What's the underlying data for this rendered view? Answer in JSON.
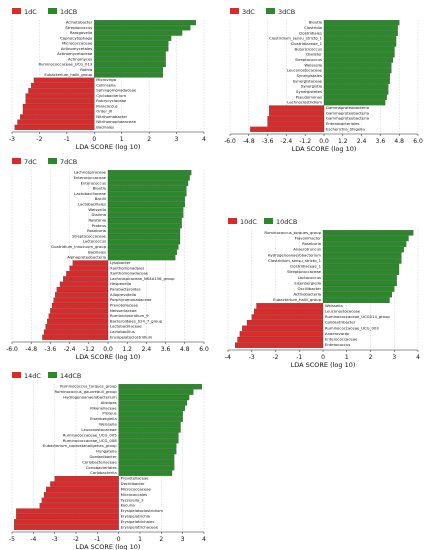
{
  "colors": {
    "control": "#dc2a2a",
    "treated": "#2a8a2a",
    "edge": "#333333",
    "grid": "#bbbbbb"
  },
  "chart_data": [
    {
      "type": "bar",
      "orientation": "horizontal",
      "xlabel": "LDA SCORE (log 10)",
      "xlim": [
        -3,
        4
      ],
      "xticks": [
        -3,
        -2,
        -1,
        0,
        1,
        2,
        3,
        4
      ],
      "series": [
        {
          "name": "1dC",
          "group": "control"
        },
        {
          "name": "1dCB",
          "group": "treated"
        }
      ],
      "bars": [
        {
          "label": "Acinetobacter",
          "value": 3.7
        },
        {
          "label": "Streptococcus",
          "value": 3.5
        },
        {
          "label": "Rarogavelia",
          "value": 3.2
        },
        {
          "label": "Capnocytophaga",
          "value": 2.8
        },
        {
          "label": "Micrococcaceae",
          "value": 2.7
        },
        {
          "label": "Actinomycetales",
          "value": 2.7
        },
        {
          "label": "Actinomycetaceae",
          "value": 2.6
        },
        {
          "label": "Actinomyces",
          "value": 2.6
        },
        {
          "label": "Ruminococcaceae_UCG_013",
          "value": 2.6
        },
        {
          "label": "Rothia",
          "value": 2.5
        },
        {
          "label": "Eubacterium_hallii_group",
          "value": 2.5
        },
        {
          "label": "Microvirga",
          "value": -2.2
        },
        {
          "label": "Collinsella",
          "value": -2.3
        },
        {
          "label": "Sphingomonadaceae",
          "value": -2.4
        },
        {
          "label": "Cyclobacterium",
          "value": -2.5
        },
        {
          "label": "Rubrycyclaceae",
          "value": -2.5
        },
        {
          "label": "Paracoccus",
          "value": -2.6
        },
        {
          "label": "Order_III",
          "value": -2.6
        },
        {
          "label": "Nitrihomabacter",
          "value": -2.7
        },
        {
          "label": "Nitrihomophaeaceae",
          "value": -2.8
        },
        {
          "label": "Bacillales",
          "value": -2.9
        }
      ]
    },
    {
      "type": "bar",
      "orientation": "horizontal",
      "xlabel": "LDA SCORE (log 10)",
      "xlim": [
        -6,
        6
      ],
      "xticks": [
        -6.0,
        -4.8,
        -3.6,
        -2.4,
        -1.2,
        0.0,
        1.2,
        2.4,
        3.6,
        4.8,
        6.0
      ],
      "series": [
        {
          "name": "3dC",
          "group": "control"
        },
        {
          "name": "3dCB",
          "group": "treated"
        }
      ],
      "bars": [
        {
          "label": "Blautia",
          "value": 4.8
        },
        {
          "label": "Clostridia",
          "value": 4.7
        },
        {
          "label": "Clostridiales",
          "value": 4.7
        },
        {
          "label": "Clostridium_sensu_stricto_1",
          "value": 4.6
        },
        {
          "label": "Clostridiaceae_1",
          "value": 4.6
        },
        {
          "label": "Butyricicoccus",
          "value": 4.5
        },
        {
          "label": "Dialister",
          "value": 4.5
        },
        {
          "label": "Streptococcus",
          "value": 4.4
        },
        {
          "label": "Weissella",
          "value": 4.3
        },
        {
          "label": "Leuconostocaceae",
          "value": 4.3
        },
        {
          "label": "Synergistales",
          "value": 4.2
        },
        {
          "label": "Synergistaceae",
          "value": 4.2
        },
        {
          "label": "Synergistia",
          "value": 4.1
        },
        {
          "label": "Synergistetes",
          "value": 4.1
        },
        {
          "label": "Pseudomonas",
          "value": 4.0
        },
        {
          "label": "Lachnoclostridium",
          "value": 3.9
        },
        {
          "label": "Gammaproteobacteria",
          "value": -3.5
        },
        {
          "label": "Gammaproteobacteria",
          "value": -3.5
        },
        {
          "label": "Gammaproteobacteria",
          "value": -3.6
        },
        {
          "label": "Enterobacteriales",
          "value": -3.6
        },
        {
          "label": "Escherichia_Shigella",
          "value": -4.7
        }
      ]
    },
    {
      "type": "bar",
      "orientation": "horizontal",
      "xlabel": "LDA SCORE (log 10)",
      "xlim": [
        -6,
        6
      ],
      "xticks": [
        -6.0,
        -4.8,
        -3.6,
        -2.4,
        -1.2,
        0.0,
        1.2,
        2.4,
        3.6,
        4.8,
        6.0
      ],
      "series": [
        {
          "name": "7dC",
          "group": "control"
        },
        {
          "name": "7dCB",
          "group": "treated"
        }
      ],
      "bars": [
        {
          "label": "Lachnospiraceae",
          "value": 5.2
        },
        {
          "label": "Enterococcaceae",
          "value": 5.1
        },
        {
          "label": "Enterococcus",
          "value": 5.0
        },
        {
          "label": "Blautia",
          "value": 4.9
        },
        {
          "label": "Lactobacillaceae",
          "value": 4.9
        },
        {
          "label": "Bacilli",
          "value": 4.8
        },
        {
          "label": "Lactobacillales",
          "value": 4.8
        },
        {
          "label": "Weissella",
          "value": 4.7
        },
        {
          "label": "Dialima",
          "value": 4.7
        },
        {
          "label": "Ralstonia",
          "value": 4.6
        },
        {
          "label": "Proteus",
          "value": 4.6
        },
        {
          "label": "Roseburia",
          "value": 4.5
        },
        {
          "label": "Streptococcaceae",
          "value": 4.5
        },
        {
          "label": "Lactococcus",
          "value": 4.5
        },
        {
          "label": "Clostridium_innocuum_group",
          "value": 4.4
        },
        {
          "label": "Bacillales",
          "value": 4.3
        },
        {
          "label": "Alphaproteobacteria",
          "value": 4.2
        },
        {
          "label": "Lysobacter",
          "value": -2.2
        },
        {
          "label": "Xanthomonadales",
          "value": -2.4
        },
        {
          "label": "Xanthomonadaceae",
          "value": -2.6
        },
        {
          "label": "Lachnospiraceae_NK4A136_group",
          "value": -2.8
        },
        {
          "label": "Hespenella",
          "value": -3.0
        },
        {
          "label": "Parabacteroides",
          "value": -3.2
        },
        {
          "label": "Alloprevotella",
          "value": -3.3
        },
        {
          "label": "Porphyromonadaceae",
          "value": -3.4
        },
        {
          "label": "Prevotellaceae",
          "value": -3.5
        },
        {
          "label": "Neisseriaceae",
          "value": -3.6
        },
        {
          "label": "Ruminiclostridium_9",
          "value": -3.7
        },
        {
          "label": "Bacteroidales_S24_7_group",
          "value": -3.8
        },
        {
          "label": "Lactobacillaceae",
          "value": -3.9
        },
        {
          "label": "Lactobacillus",
          "value": -4.0
        },
        {
          "label": "Erysipelatoclostridium",
          "value": -4.1
        }
      ]
    },
    {
      "type": "bar",
      "orientation": "horizontal",
      "xlabel": "LDA SCORE (log 10)",
      "xlim": [
        -4,
        4
      ],
      "xticks": [
        -4,
        -3,
        -2,
        -1,
        0,
        1,
        2,
        3,
        4
      ],
      "series": [
        {
          "name": "10dC",
          "group": "control"
        },
        {
          "name": "10dCB",
          "group": "treated"
        }
      ],
      "bars": [
        {
          "label": "Ruminococcus_torques_group",
          "value": 3.8
        },
        {
          "label": "Flavonifractor",
          "value": 3.6
        },
        {
          "label": "Roseburia",
          "value": 3.5
        },
        {
          "label": "Anaerotruncus",
          "value": 3.4
        },
        {
          "label": "Hydrogenoanaerobacterium",
          "value": 3.3
        },
        {
          "label": "Clostridium_sensu_stricto_1",
          "value": 3.3
        },
        {
          "label": "Clostridiaceae_1",
          "value": 3.2
        },
        {
          "label": "Streptococcaceae",
          "value": 3.2
        },
        {
          "label": "Lactococcus",
          "value": 3.1
        },
        {
          "label": "Eisenbergiella",
          "value": 3.1
        },
        {
          "label": "Oscillibacter",
          "value": 3.0
        },
        {
          "label": "Actinobacteria",
          "value": 2.9
        },
        {
          "label": "Eubacterium_hallii_group",
          "value": 2.8
        },
        {
          "label": "Weissella",
          "value": -2.8
        },
        {
          "label": "Leuconostocaceae",
          "value": -2.9
        },
        {
          "label": "Ruminococcaceae_UCG014_group",
          "value": -3.0
        },
        {
          "label": "Colidextribacter",
          "value": -3.2
        },
        {
          "label": "Ruminococcaceae_UCG_003",
          "value": -3.4
        },
        {
          "label": "Anaerovorax",
          "value": -3.5
        },
        {
          "label": "Enterococcaceae",
          "value": -3.6
        },
        {
          "label": "Enterococcus",
          "value": -3.7
        }
      ]
    },
    {
      "type": "bar",
      "orientation": "horizontal",
      "xlabel": "LDA SCORE (log 10)",
      "xlim": [
        -5,
        4
      ],
      "xticks": [
        -5,
        -4,
        -3,
        -2,
        -1,
        0,
        1,
        2,
        3,
        4
      ],
      "series": [
        {
          "name": "14dC",
          "group": "control"
        },
        {
          "name": "14dCB",
          "group": "treated"
        }
      ],
      "bars": [
        {
          "label": "Ruminococcus_torques_group",
          "value": 3.9
        },
        {
          "label": "Ruminococcus_gauvreauii_group",
          "value": 3.5
        },
        {
          "label": "Hydrogenoanaerobacterium",
          "value": 3.3
        },
        {
          "label": "Alistipes",
          "value": 3.2
        },
        {
          "label": "Rikenellaceae",
          "value": 3.1
        },
        {
          "label": "Proteus",
          "value": 3.0
        },
        {
          "label": "Eisenbergiella",
          "value": 3.0
        },
        {
          "label": "Weissella",
          "value": 2.9
        },
        {
          "label": "Leuconostocaceae",
          "value": 2.9
        },
        {
          "label": "Ruminococcaceae_UCG_005",
          "value": 2.8
        },
        {
          "label": "Ruminococcaceae_UCG_008",
          "value": 2.8
        },
        {
          "label": "Eubacterium_coprostanoligenes_group",
          "value": 2.7
        },
        {
          "label": "Hungatella",
          "value": 2.7
        },
        {
          "label": "Gordonibacter",
          "value": 2.6
        },
        {
          "label": "Coriobacteriaceae",
          "value": 2.6
        },
        {
          "label": "Coriobacteriales",
          "value": 2.6
        },
        {
          "label": "Coriobacteriia",
          "value": 2.5
        },
        {
          "label": "Prevotellaceae",
          "value": -3.0
        },
        {
          "label": "Dechiibacter",
          "value": -3.2
        },
        {
          "label": "Micrococcaceae",
          "value": -3.4
        },
        {
          "label": "Micrococcales",
          "value": -3.5
        },
        {
          "label": "Tyzzerella_3",
          "value": -3.6
        },
        {
          "label": "Kocuria",
          "value": -3.7
        },
        {
          "label": "Erysipelatoclostridium",
          "value": -4.8
        },
        {
          "label": "Erysipelotrichia",
          "value": -4.8
        },
        {
          "label": "Erysipelotrichales",
          "value": -4.9
        },
        {
          "label": "Erysipelotrichaceae",
          "value": -4.9
        }
      ]
    }
  ]
}
